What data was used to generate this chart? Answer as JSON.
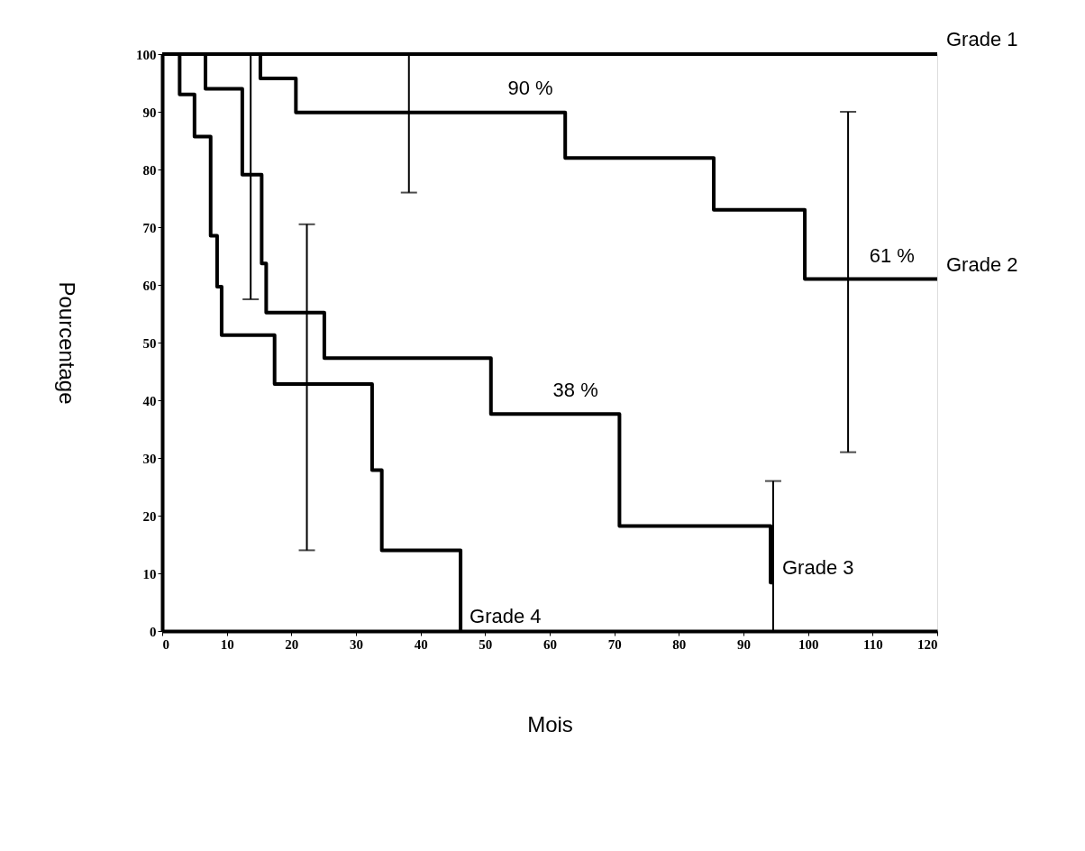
{
  "chart_data": {
    "type": "step",
    "xlabel": "Mois",
    "ylabel": "Pourcentage",
    "xlim": [
      0,
      120
    ],
    "ylim": [
      0,
      100
    ],
    "xticks": [
      0,
      10,
      20,
      30,
      40,
      50,
      60,
      70,
      80,
      90,
      100,
      110,
      120
    ],
    "yticks": [
      0,
      10,
      20,
      30,
      40,
      50,
      60,
      70,
      80,
      90,
      100
    ],
    "grid": false,
    "legend": false,
    "marker": "none",
    "line_style": "solid",
    "series": [
      {
        "name": "Grade 1",
        "color": "#000000",
        "x": [
          0,
          120
        ],
        "values": [
          100,
          100
        ]
      },
      {
        "name": "Grade 2",
        "color": "#000000",
        "x": [
          0,
          15.2,
          20.7,
          38.2,
          62.4,
          85.4,
          99.5,
          106.2,
          120
        ],
        "values": [
          100,
          95.8,
          89.9,
          89.9,
          82,
          73,
          61,
          61,
          61
        ],
        "errors": [
          null,
          null,
          null,
          [
            76,
            100
          ],
          null,
          null,
          null,
          [
            31,
            90
          ],
          null
        ]
      },
      {
        "name": "Grade 3",
        "color": "#000000",
        "x": [
          0,
          6.7,
          12.4,
          13.7,
          15.4,
          16.1,
          25.1,
          50.9,
          70.8,
          94.2,
          94.6
        ],
        "values": [
          100,
          94,
          79.1,
          79.1,
          63.7,
          55.2,
          47.3,
          37.6,
          18.2,
          8.4,
          8.4
        ],
        "errors": [
          null,
          null,
          null,
          [
            57.5,
            100
          ],
          null,
          null,
          null,
          null,
          null,
          null,
          [
            0,
            26
          ]
        ]
      },
      {
        "name": "Grade 4",
        "color": "#000000",
        "x": [
          0,
          2.7,
          5,
          7.5,
          8.5,
          9.2,
          17.4,
          22.4,
          32.5,
          34,
          46.2
        ],
        "values": [
          100,
          93,
          85.7,
          68.5,
          59.7,
          51.3,
          42.8,
          42.8,
          27.9,
          14,
          0
        ],
        "errors": [
          null,
          null,
          null,
          null,
          null,
          null,
          null,
          [
            14,
            70.5
          ],
          null,
          null,
          null
        ]
      }
    ],
    "annotations": [
      {
        "text": "90 %",
        "x": 57,
        "y": 90
      },
      {
        "text": "61 %",
        "x": 113,
        "y": 61
      },
      {
        "text": "38 %",
        "x": 64,
        "y": 37.6
      }
    ]
  }
}
